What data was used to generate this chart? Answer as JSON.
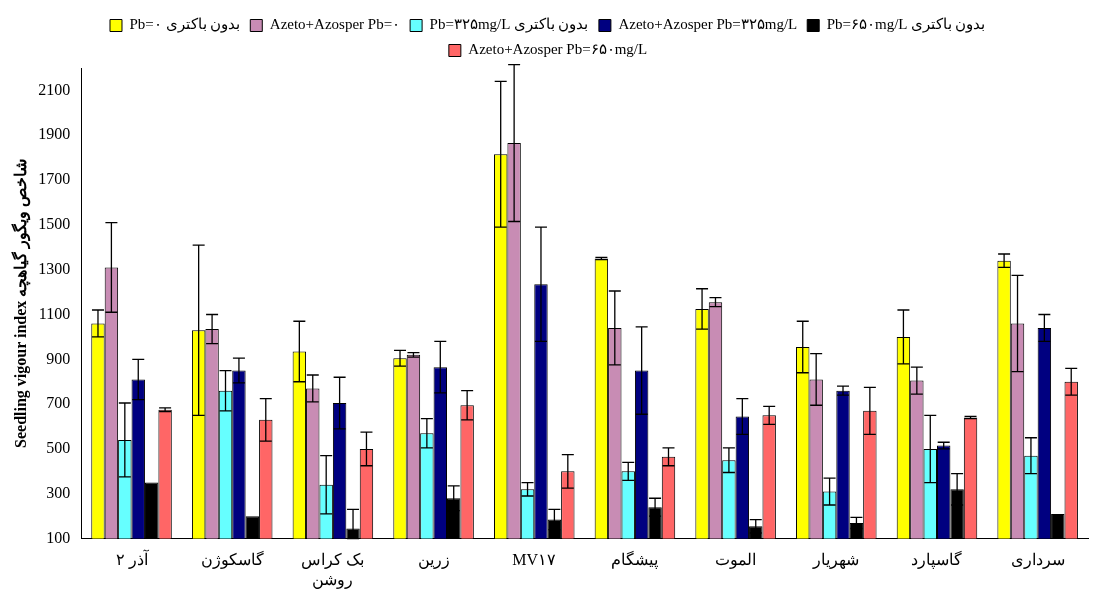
{
  "chart_data": {
    "type": "bar",
    "ylabel": "Seedling vigour index شاخص ویگور گیاهچه",
    "categories": [
      "آذر ۲",
      "گاسکوژن",
      "بک کراس روشن",
      "زرین",
      "MV۱۷",
      "پیشگام",
      "الموت",
      "شهریار",
      "گاسپارد",
      "سرداری"
    ],
    "series": [
      {
        "name": "Pb=۰ بدون باکتری",
        "color": "#ffff00",
        "values": [
          1060,
          1030,
          935,
          905,
          1815,
          1350,
          1125,
          955,
          1000,
          1340
        ],
        "errors": [
          60,
          380,
          135,
          35,
          325,
          5,
          90,
          115,
          120,
          30
        ]
      },
      {
        "name": "Azeto+Azosper Pb=۰",
        "color": "#c88cb4",
        "values": [
          1310,
          1035,
          770,
          920,
          1865,
          1040,
          1155,
          810,
          805,
          1060
        ],
        "errors": [
          200,
          65,
          60,
          10,
          350,
          165,
          20,
          115,
          60,
          215
        ]
      },
      {
        "name": "Pb=۳۲۵mg/L بدون باکتری",
        "color": "#66ffff",
        "values": [
          540,
          760,
          340,
          570,
          320,
          400,
          450,
          310,
          500,
          470
        ],
        "errors": [
          165,
          90,
          130,
          65,
          30,
          40,
          55,
          60,
          150,
          80
        ]
      },
      {
        "name": "Azeto+Azosper Pb=۳۲۵mg/L",
        "color": "#000080",
        "values": [
          810,
          850,
          705,
          865,
          1235,
          850,
          645,
          760,
          515,
          1040
        ],
        "errors": [
          90,
          55,
          115,
          115,
          255,
          195,
          80,
          20,
          15,
          60
        ]
      },
      {
        "name": "Pb=۶۵۰mg/L بدون باکتری",
        "color": "#000000",
        "values": [
          350,
          200,
          145,
          280,
          185,
          240,
          155,
          170,
          320,
          210
        ],
        "errors": [
          null,
          null,
          [
            100,
            230
          ],
          55,
          45,
          40,
          30,
          25,
          70,
          null
        ]
      },
      {
        "name": "Azeto+Azosper Pb=۶۵۰mg/L",
        "color": "#ff6666",
        "values": [
          675,
          630,
          500,
          695,
          400,
          465,
          650,
          670,
          640,
          800
        ],
        "errors": [
          8,
          95,
          75,
          65,
          75,
          40,
          40,
          105,
          5,
          60
        ]
      }
    ],
    "ylim": [
      100,
      2200
    ],
    "yticks": [
      100,
      300,
      500,
      700,
      900,
      1100,
      1300,
      1500,
      1700,
      1900,
      2100
    ],
    "grid": false,
    "legend": "top"
  }
}
